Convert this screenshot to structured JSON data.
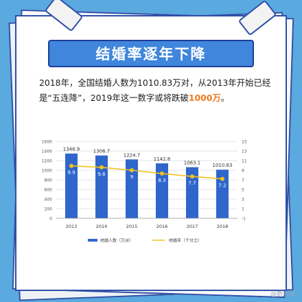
{
  "headline": "结婚率逐年下降",
  "description": {
    "part1": "2018年，全国结婚人数为1010.83万对，从2013年开始已经是“五连降”，2019年这一数字或将跌破",
    "highlight": "1000万",
    "part2": "。"
  },
  "watermark": "@新京报",
  "colors": {
    "background": "#5aa9df",
    "bars": "#2f66cc",
    "line": "#f2c21b",
    "banner": "#3f86dc",
    "highlight": "#f07a1e"
  },
  "chart_data": {
    "type": "bar",
    "categories": [
      "2013",
      "2014",
      "2015",
      "2016",
      "2017",
      "2018"
    ],
    "series": [
      {
        "name": "结婚人数（万对）",
        "chart_type": "bar",
        "axis": "left",
        "values": [
          1346.9,
          1306.7,
          1224.7,
          1142.8,
          1063.1,
          1010.83
        ],
        "labels": [
          "1346.9",
          "1306.7",
          "1224.7",
          "1142.8",
          "1063.1",
          "1010.83"
        ]
      },
      {
        "name": "结婚率（千分之）",
        "chart_type": "line",
        "axis": "right",
        "values": [
          9.9,
          9.6,
          9.0,
          8.3,
          7.7,
          7.2
        ],
        "labels": [
          "9.9",
          "9.6",
          "9",
          "8.3",
          "7.7",
          "7.2"
        ]
      }
    ],
    "y_left": {
      "min": 0,
      "max": 1600,
      "ticks": [
        "0",
        "200",
        "400",
        "600",
        "800",
        "1000",
        "1200",
        "1400",
        "1600"
      ]
    },
    "y_right": {
      "min": -1,
      "max": 15,
      "ticks": [
        "-1",
        "1",
        "3",
        "5",
        "7",
        "9",
        "11",
        "13",
        "15"
      ]
    },
    "grid": true,
    "legend_position": "bottom"
  }
}
